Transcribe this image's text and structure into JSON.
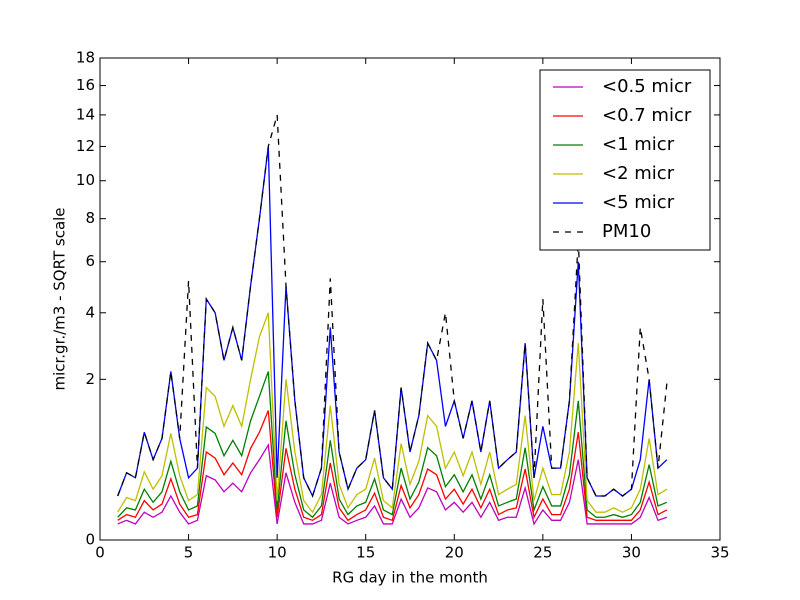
{
  "chart_data": {
    "type": "line",
    "xlabel": "RG day in the month",
    "ylabel": "micr.gr./m3 - SQRT scale",
    "yscale": "sqrt",
    "legend": "upper right",
    "xlim": [
      0,
      35
    ],
    "xticks": [
      0,
      5,
      10,
      15,
      20,
      25,
      30,
      35
    ],
    "ylim": [
      0,
      18
    ],
    "yticks": [
      0,
      2,
      4,
      6,
      8,
      10,
      12,
      14,
      16,
      18
    ],
    "x": [
      1,
      1.5,
      2,
      2.5,
      3,
      3.5,
      4,
      4.5,
      5,
      5.5,
      6,
      6.5,
      7,
      7.5,
      8,
      8.5,
      9,
      9.5,
      10,
      10.5,
      11,
      11.5,
      12,
      12.5,
      13,
      13.5,
      14,
      14.5,
      15,
      15.5,
      16,
      16.5,
      17,
      17.5,
      18,
      18.5,
      19,
      19.5,
      20,
      20.5,
      21,
      21.5,
      22,
      22.5,
      23,
      23.5,
      24,
      24.5,
      25,
      25.5,
      26,
      26.5,
      27,
      27.5,
      28,
      28.5,
      29,
      29.5,
      30,
      30.5,
      31,
      31.5,
      32
    ],
    "series": [
      {
        "name": "<0.5 micr",
        "color": "#bf00bf",
        "dash": "solid",
        "values": [
          0.02,
          0.03,
          0.02,
          0.06,
          0.04,
          0.06,
          0.15,
          0.06,
          0.02,
          0.03,
          0.32,
          0.28,
          0.18,
          0.25,
          0.18,
          0.35,
          0.5,
          0.7,
          0.02,
          0.35,
          0.11,
          0.02,
          0.02,
          0.03,
          0.25,
          0.04,
          0.02,
          0.03,
          0.04,
          0.09,
          0.02,
          0.02,
          0.13,
          0.04,
          0.08,
          0.21,
          0.18,
          0.07,
          0.11,
          0.06,
          0.11,
          0.04,
          0.11,
          0.03,
          0.04,
          0.04,
          0.21,
          0.02,
          0.07,
          0.03,
          0.03,
          0.11,
          0.5,
          0.02,
          0.02,
          0.02,
          0.02,
          0.02,
          0.02,
          0.04,
          0.14,
          0.03,
          0.04
        ]
      },
      {
        "name": "<0.7 micr",
        "color": "#ff0000",
        "dash": "solid",
        "values": [
          0.03,
          0.05,
          0.04,
          0.12,
          0.07,
          0.1,
          0.29,
          0.1,
          0.04,
          0.05,
          0.6,
          0.52,
          0.33,
          0.46,
          0.33,
          0.65,
          0.9,
          1.3,
          0.04,
          0.65,
          0.2,
          0.04,
          0.03,
          0.05,
          0.46,
          0.08,
          0.03,
          0.05,
          0.07,
          0.17,
          0.04,
          0.03,
          0.23,
          0.08,
          0.16,
          0.39,
          0.33,
          0.13,
          0.2,
          0.1,
          0.2,
          0.08,
          0.2,
          0.05,
          0.07,
          0.08,
          0.39,
          0.04,
          0.13,
          0.05,
          0.05,
          0.2,
          0.9,
          0.04,
          0.03,
          0.03,
          0.03,
          0.03,
          0.03,
          0.07,
          0.26,
          0.05,
          0.07
        ]
      },
      {
        "name": "<1 micr",
        "color": "#008000",
        "dash": "solid",
        "values": [
          0.04,
          0.08,
          0.07,
          0.2,
          0.11,
          0.18,
          0.48,
          0.18,
          0.07,
          0.09,
          0.99,
          0.88,
          0.55,
          0.77,
          0.55,
          1.1,
          1.6,
          2.2,
          0.07,
          1.1,
          0.33,
          0.07,
          0.04,
          0.09,
          0.77,
          0.13,
          0.05,
          0.09,
          0.11,
          0.29,
          0.07,
          0.05,
          0.4,
          0.13,
          0.26,
          0.66,
          0.55,
          0.22,
          0.33,
          0.18,
          0.33,
          0.13,
          0.33,
          0.09,
          0.11,
          0.13,
          0.66,
          0.07,
          0.22,
          0.09,
          0.09,
          0.33,
          1.5,
          0.07,
          0.04,
          0.04,
          0.05,
          0.04,
          0.05,
          0.11,
          0.44,
          0.09,
          0.11
        ]
      },
      {
        "name": "<2 micr",
        "color": "#bfbf00",
        "dash": "solid",
        "values": [
          0.06,
          0.14,
          0.12,
          0.36,
          0.2,
          0.32,
          0.88,
          0.32,
          0.12,
          0.16,
          1.8,
          1.6,
          1.0,
          1.4,
          1.0,
          2.0,
          3.2,
          4.0,
          0.12,
          2.0,
          0.6,
          0.12,
          0.06,
          0.16,
          1.4,
          0.24,
          0.08,
          0.16,
          0.2,
          0.52,
          0.12,
          0.08,
          0.72,
          0.24,
          0.48,
          1.2,
          1.0,
          0.4,
          0.6,
          0.32,
          0.6,
          0.24,
          0.6,
          0.16,
          0.2,
          0.24,
          1.2,
          0.12,
          0.4,
          0.16,
          0.16,
          0.6,
          3.0,
          0.12,
          0.06,
          0.06,
          0.08,
          0.06,
          0.08,
          0.2,
          0.8,
          0.16,
          0.2
        ]
      },
      {
        "name": "<5 micr",
        "color": "#0000ff",
        "dash": "solid",
        "values": [
          0.15,
          0.35,
          0.3,
          0.9,
          0.5,
          0.8,
          2.2,
          0.8,
          0.3,
          0.4,
          4.5,
          4,
          2.5,
          3.5,
          2.5,
          5,
          8,
          12,
          0.3,
          5,
          1.5,
          0.3,
          0.15,
          0.4,
          3.5,
          0.6,
          0.2,
          0.4,
          0.5,
          1.3,
          0.3,
          0.2,
          1.8,
          0.6,
          1.2,
          3,
          2.5,
          1,
          1.5,
          0.8,
          1.5,
          0.6,
          1.5,
          0.4,
          0.5,
          0.6,
          3,
          0.3,
          1,
          0.4,
          0.4,
          1.5,
          6,
          0.3,
          0.15,
          0.15,
          0.2,
          0.15,
          0.2,
          0.5,
          2,
          0.4,
          0.5
        ]
      },
      {
        "name": "PM10",
        "color": "#000000",
        "dash": "dashed",
        "values": [
          0.15,
          0.35,
          0.3,
          0.9,
          0.5,
          0.8,
          2.2,
          0.8,
          5.2,
          0.4,
          4.5,
          4,
          2.5,
          3.5,
          2.5,
          5,
          8,
          12,
          14,
          5,
          1.5,
          0.3,
          0.15,
          0.4,
          5.3,
          0.6,
          0.2,
          0.4,
          0.5,
          1.3,
          0.3,
          0.2,
          1.8,
          0.6,
          1.2,
          3,
          2.5,
          4,
          1.5,
          0.8,
          1.5,
          0.6,
          1.5,
          0.4,
          0.5,
          0.6,
          3,
          0.3,
          4.5,
          0.4,
          0.4,
          1.5,
          7,
          0.3,
          0.15,
          0.15,
          0.2,
          0.15,
          0.2,
          3.5,
          2,
          0.4,
          1.9
        ]
      }
    ]
  }
}
